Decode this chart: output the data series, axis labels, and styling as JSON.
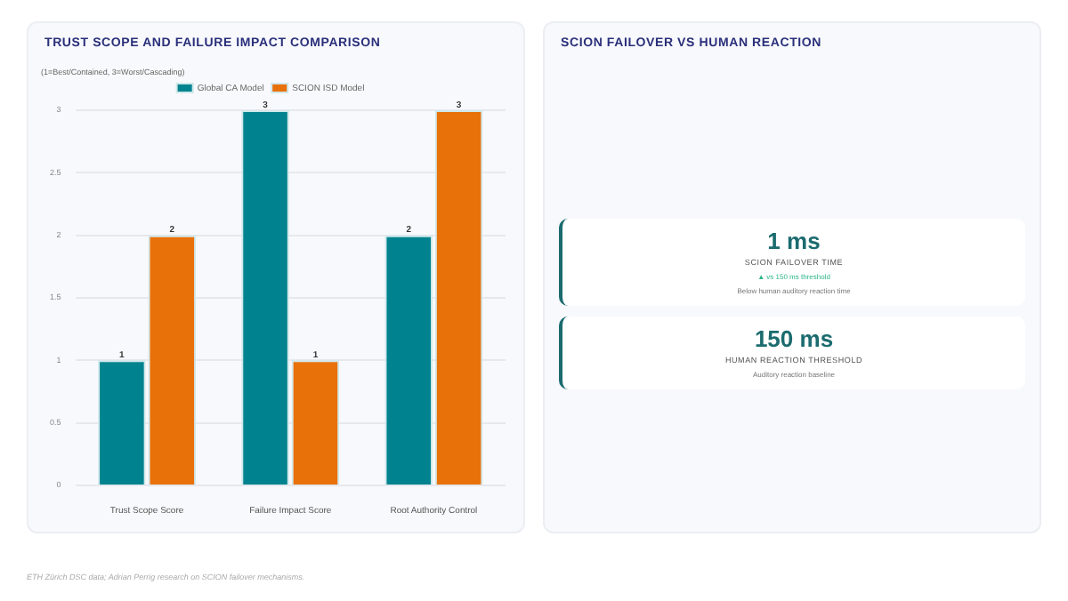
{
  "chart_data": [
    {
      "type": "bar",
      "title": "TRUST SCOPE AND FAILURE IMPACT COMPARISON",
      "ylabel": "(1=Best/Contained, 3=Worst/Cascading)",
      "categories": [
        "Trust Scope Score",
        "Failure Impact Score",
        "Root Authority Control"
      ],
      "series": [
        {
          "name": "Global CA Model",
          "color": "#00838f",
          "values": [
            1,
            3,
            2
          ]
        },
        {
          "name": "SCION ISD Model",
          "color": "#e8710a",
          "values": [
            2,
            1,
            3
          ]
        }
      ],
      "ylim": [
        0,
        3
      ],
      "yticks": [
        0,
        0.5,
        1,
        1.5,
        2,
        2.5,
        3
      ],
      "grid": "y",
      "legend": "top",
      "data_labels": true,
      "annotations": [
        "ETH Zürich DSC data; Adrian Perrig research on SCION failover mechanisms."
      ]
    },
    {
      "type": "other",
      "title": "SCION FAILOVER VS HUMAN REACTION",
      "categories": [
        "SCION FAILOVER TIME",
        "HUMAN REACTION THRESHOLD"
      ],
      "value_labels": [
        "1 ms",
        "150 ms"
      ],
      "annotations": [
        {
          "text": "▲ vs 150 ms threshold",
          "x": "SCION FAILOVER TIME"
        },
        {
          "text": "Below human auditory reaction time",
          "x": "SCION FAILOVER TIME"
        },
        {
          "text": "Auditory reaction baseline",
          "x": "HUMAN REACTION THRESHOLD"
        }
      ]
    }
  ]
}
